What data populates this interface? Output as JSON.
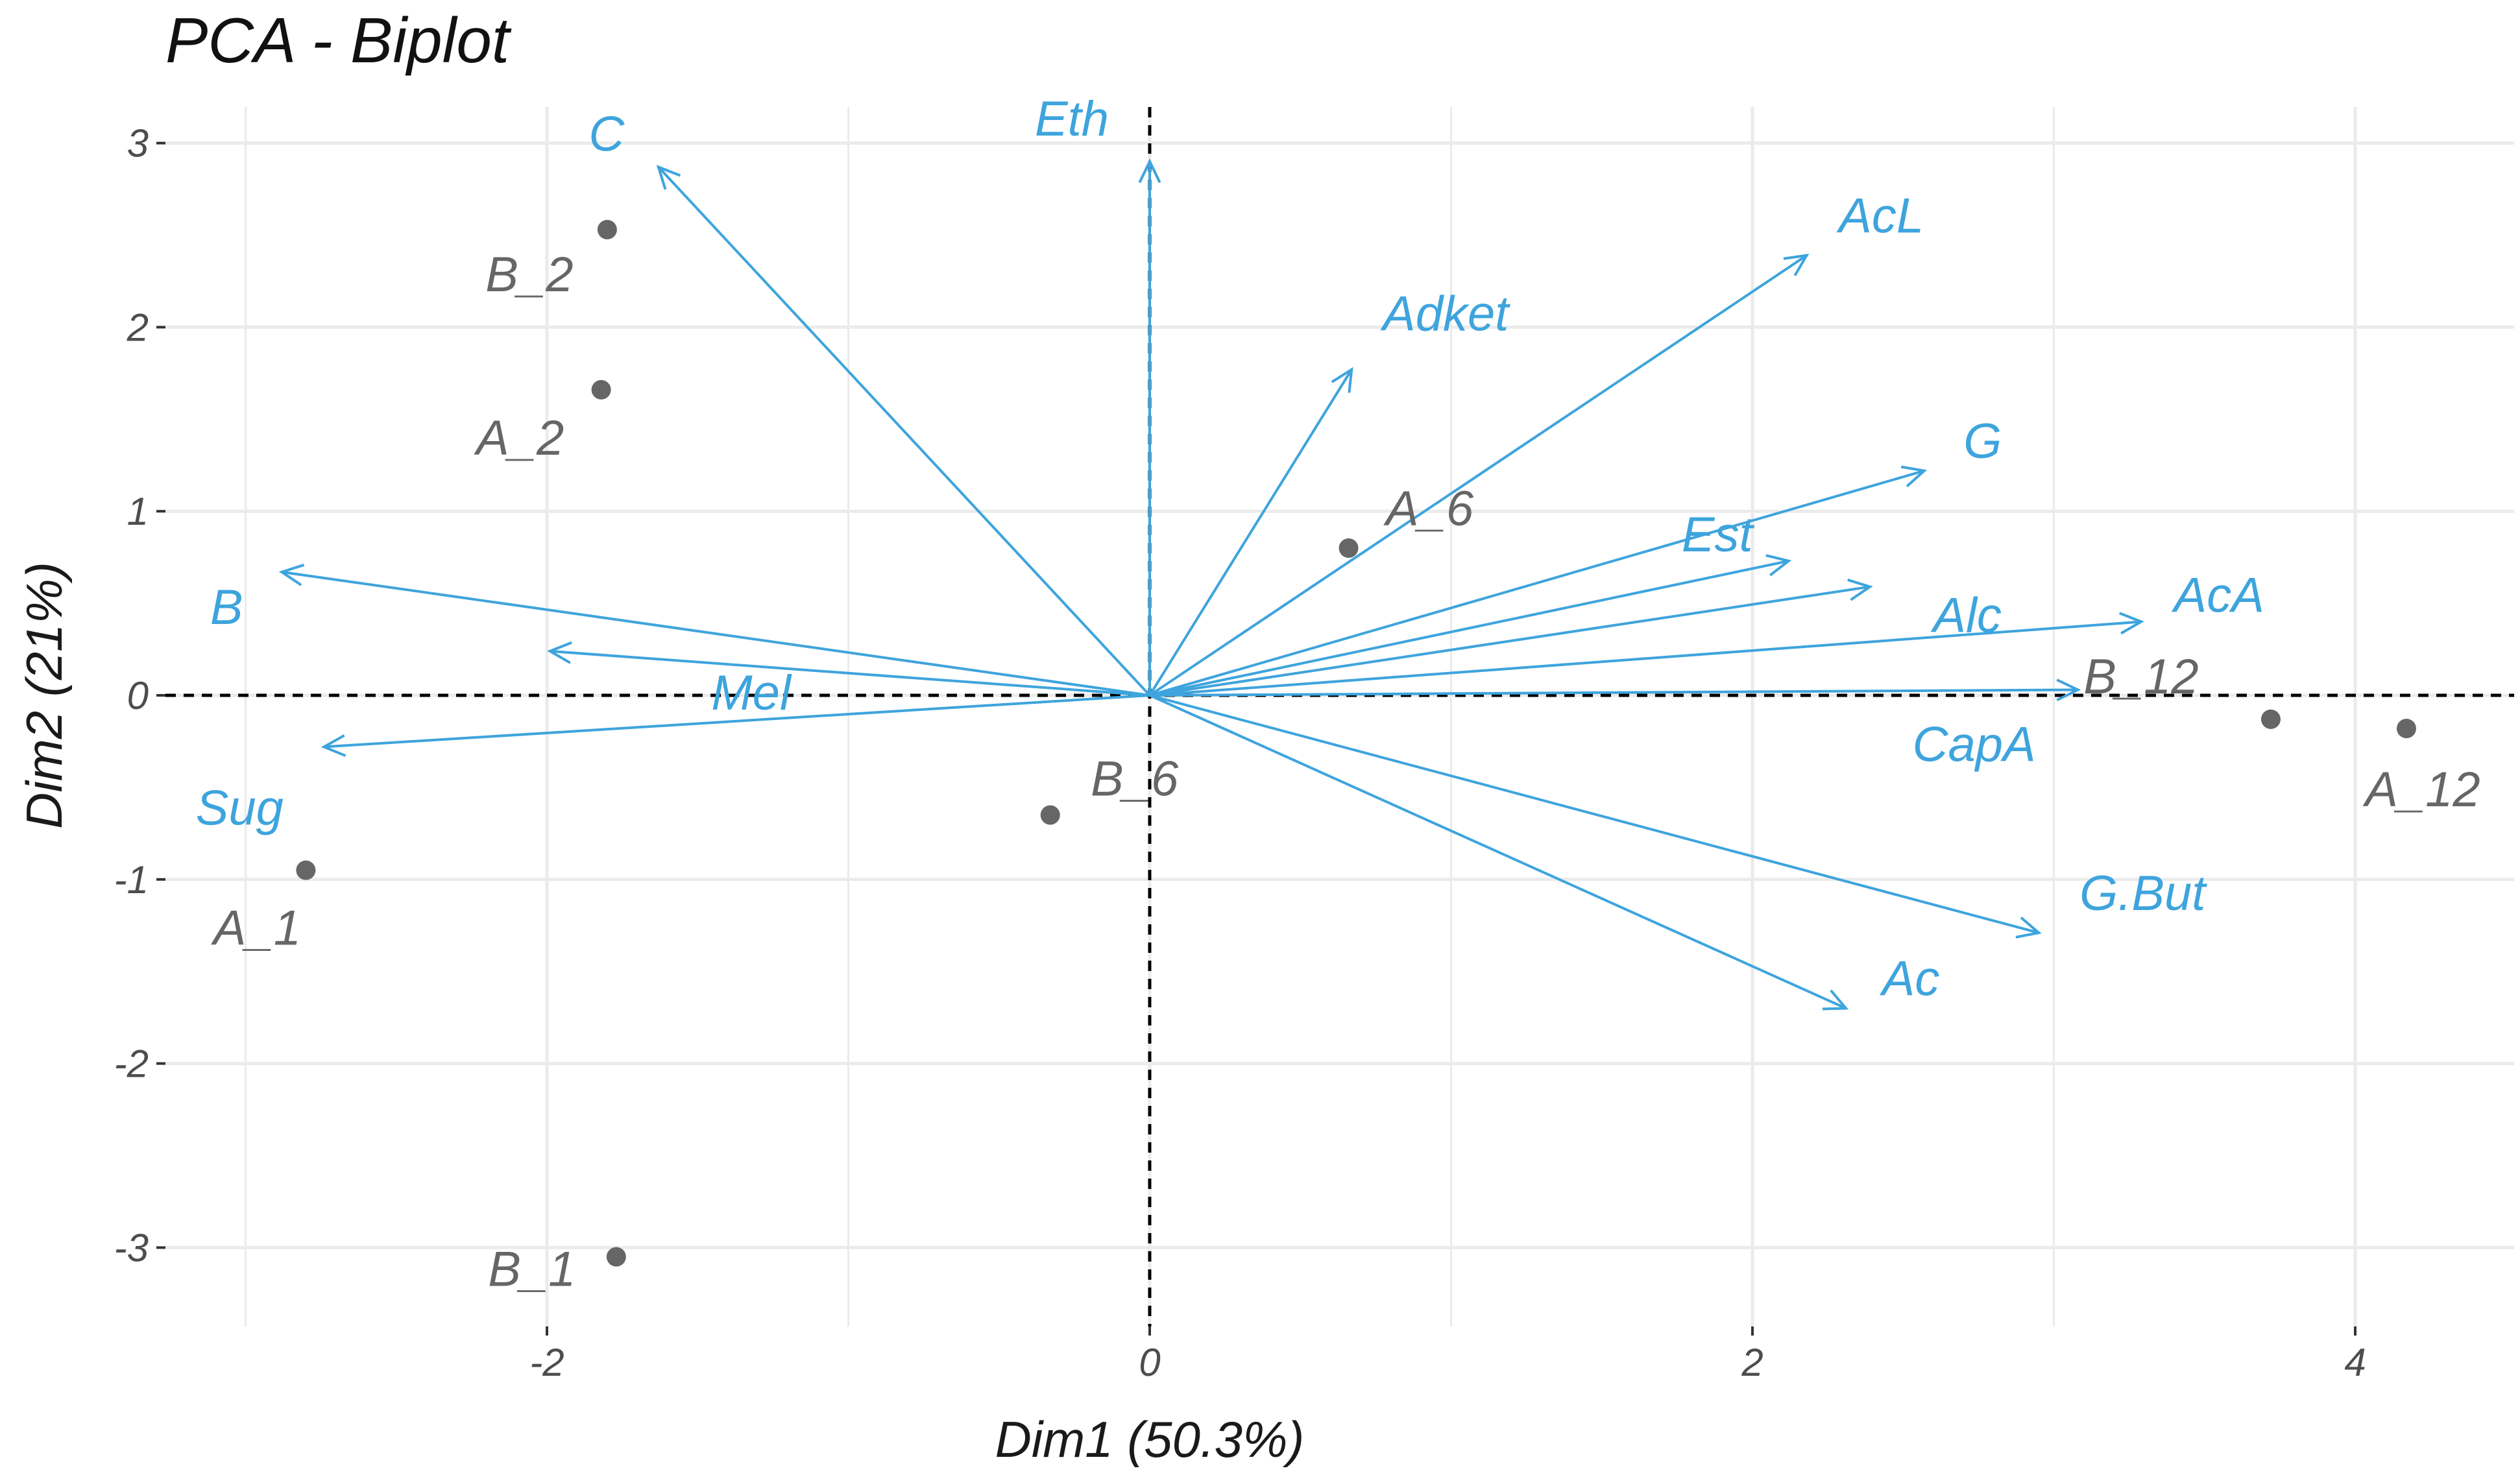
{
  "colors": {
    "variable": "#3ea4dd",
    "individual": "#666666",
    "grid": "#ebebeb",
    "zero_line": "#000000"
  },
  "chart_data": {
    "type": "scatter",
    "subtype": "pca-biplot",
    "title": "PCA - Biplot",
    "xlabel": "Dim1 (50.3%)",
    "ylabel": "Dim2 (21%)",
    "xlim": [
      -3.3,
      4.5
    ],
    "ylim": [
      -3.35,
      3.15
    ],
    "x_ticks": [
      {
        "value": -2,
        "label": "-2"
      },
      {
        "value": 0,
        "label": "0"
      },
      {
        "value": 2,
        "label": "2"
      },
      {
        "value": 4,
        "label": "4"
      }
    ],
    "y_ticks": [
      {
        "value": -3,
        "label": "-3"
      },
      {
        "value": -2,
        "label": "-2"
      },
      {
        "value": -1,
        "label": "-1"
      },
      {
        "value": 0,
        "label": "0"
      },
      {
        "value": 1,
        "label": "1"
      },
      {
        "value": 2,
        "label": "2"
      },
      {
        "value": 3,
        "label": "3"
      }
    ],
    "grid": true,
    "individuals": [
      {
        "name": "B_2",
        "x": -1.8,
        "y": 2.53
      },
      {
        "name": "A_2",
        "x": -1.82,
        "y": 1.66
      },
      {
        "name": "A_6",
        "x": 0.66,
        "y": 0.8
      },
      {
        "name": "B_6",
        "x": -0.33,
        "y": -0.65
      },
      {
        "name": "A_1",
        "x": -2.8,
        "y": -0.95
      },
      {
        "name": "B_1",
        "x": -1.77,
        "y": -3.05
      },
      {
        "name": "B_12",
        "x": 3.72,
        "y": -0.13
      },
      {
        "name": "A_12",
        "x": 4.17,
        "y": -0.18
      }
    ],
    "variables": [
      {
        "name": "C",
        "x": -1.63,
        "y": 2.87
      },
      {
        "name": "Eth",
        "x": 0.0,
        "y": 2.9
      },
      {
        "name": "AcL",
        "x": 2.18,
        "y": 2.39
      },
      {
        "name": "Adket",
        "x": 0.67,
        "y": 1.77
      },
      {
        "name": "G",
        "x": 2.57,
        "y": 1.22
      },
      {
        "name": "Est",
        "x": 2.12,
        "y": 0.73
      },
      {
        "name": "Alc",
        "x": 2.39,
        "y": 0.59
      },
      {
        "name": "AcA",
        "x": 3.29,
        "y": 0.4
      },
      {
        "name": "CapA",
        "x": 3.08,
        "y": 0.03
      },
      {
        "name": "B",
        "x": -2.88,
        "y": 0.67
      },
      {
        "name": "Mel",
        "x": -1.99,
        "y": 0.24
      },
      {
        "name": "Sug",
        "x": -2.74,
        "y": -0.28
      },
      {
        "name": "G.But",
        "x": 2.95,
        "y": -1.29
      },
      {
        "name": "Ac",
        "x": 2.31,
        "y": -1.7
      }
    ]
  }
}
